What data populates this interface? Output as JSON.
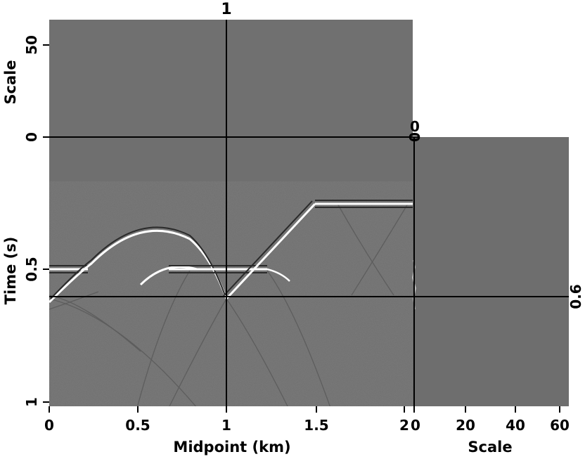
{
  "panels": {
    "main": {
      "xlabel": "Midpoint (km)",
      "ylabel": "Time (s)",
      "xticks": [
        "0",
        "0.5",
        "1",
        "1.5",
        "2"
      ],
      "yticks": [
        "0",
        "0.5",
        "1"
      ]
    },
    "top": {
      "ylabel": "Scale",
      "yticks": [
        "0",
        "50"
      ]
    },
    "right": {
      "xlabel": "Scale",
      "xticks": [
        "0",
        "20",
        "40",
        "60"
      ]
    }
  },
  "crosshair": {
    "midpoint_label": "1",
    "time_label": "0.6",
    "scale_label": "0"
  },
  "colors": {
    "background": "#ffffff",
    "panel_gray": "#6f6f6f",
    "line": "#000000",
    "event_white": "#ffffff"
  }
}
